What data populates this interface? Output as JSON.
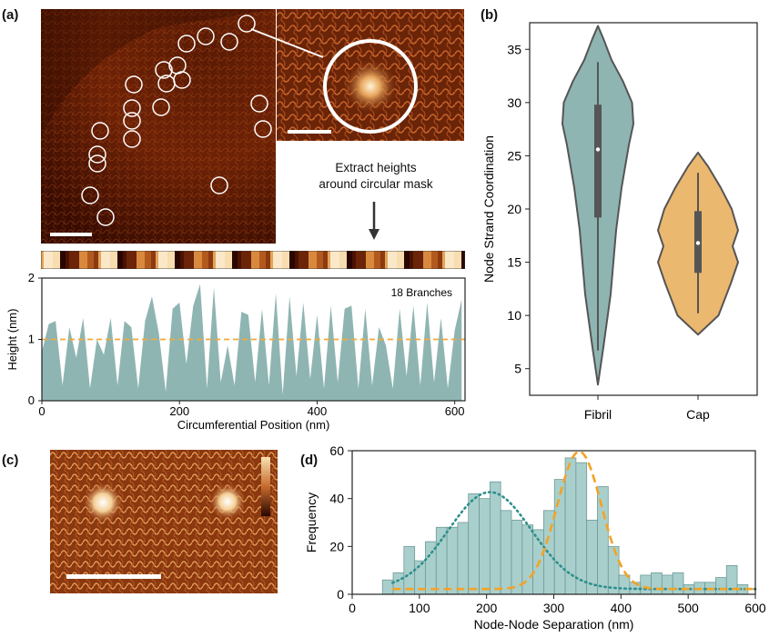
{
  "panels": {
    "a": "(a)",
    "b": "(b)",
    "c": "(c)",
    "d": "(d)"
  },
  "panel_a": {
    "annotation": "Extract heights\naround circular mask",
    "colors": {
      "afm_dark": "#2a0800",
      "afm_mid": "#8a2c08",
      "afm_light": "#f7d9a0",
      "circle": "#ffffff"
    }
  },
  "chart_data": [
    {
      "id": "a-profile",
      "type": "area",
      "xlabel": "Circumferential Position (nm)",
      "ylabel": "Height (nm)",
      "xlim": [
        0,
        615
      ],
      "ylim": [
        0,
        2
      ],
      "xticks": [
        0,
        200,
        400,
        600
      ],
      "yticks": [
        0,
        1,
        2
      ],
      "annotation": "18 Branches",
      "reference_line": 1,
      "fill_color": "#8fb5b2",
      "reference_color": "#f2a93b",
      "x": [
        0,
        10,
        20,
        30,
        40,
        50,
        60,
        70,
        80,
        90,
        100,
        110,
        120,
        130,
        140,
        150,
        160,
        170,
        180,
        190,
        200,
        210,
        220,
        230,
        240,
        250,
        260,
        270,
        280,
        290,
        300,
        310,
        320,
        330,
        340,
        350,
        360,
        370,
        380,
        390,
        400,
        410,
        420,
        430,
        440,
        450,
        460,
        470,
        480,
        490,
        500,
        510,
        520,
        530,
        540,
        550,
        560,
        570,
        580,
        590,
        600,
        610
      ],
      "y": [
        0.8,
        1.25,
        1.3,
        0.25,
        1.2,
        0.7,
        1.35,
        0.2,
        1.0,
        0.75,
        1.35,
        0.25,
        1.3,
        1.2,
        0.2,
        1.3,
        1.7,
        1.1,
        0.15,
        1.5,
        1.6,
        0.6,
        1.55,
        1.9,
        0.2,
        1.85,
        0.3,
        0.9,
        0.25,
        1.45,
        1.4,
        0.3,
        1.5,
        0.25,
        1.75,
        0.1,
        1.7,
        0.4,
        1.6,
        0.35,
        1.4,
        0.2,
        1.55,
        0.3,
        1.5,
        1.55,
        0.2,
        1.5,
        0.25,
        1.2,
        0.9,
        0.2,
        1.5,
        0.4,
        1.55,
        0.25,
        1.6,
        0.3,
        1.35,
        0.2,
        1.15,
        1.65
      ]
    },
    {
      "id": "b-violin",
      "type": "violin",
      "ylabel": "Node Strand Coordination",
      "ylim": [
        2.5,
        37.5
      ],
      "yticks": [
        5,
        10,
        15,
        20,
        25,
        30,
        35
      ],
      "categories": [
        "Fibril",
        "Cap"
      ],
      "series": [
        {
          "category": "Fibril",
          "color": "#8fb5b2",
          "density_y": [
            3.5,
            7,
            12,
            18,
            22,
            26,
            28,
            30,
            32,
            34,
            36,
            37.2
          ],
          "density_w": [
            0,
            0.12,
            0.28,
            0.4,
            0.52,
            0.68,
            0.78,
            0.75,
            0.55,
            0.3,
            0.12,
            0
          ],
          "whisker": [
            6.7,
            33.8
          ],
          "box": [
            19.2,
            29.8
          ],
          "median": 25.6
        },
        {
          "category": "Cap",
          "color": "#ebb86f",
          "density_y": [
            8.2,
            10,
            13,
            15,
            16.5,
            18,
            20,
            22,
            24,
            25.3
          ],
          "density_w": [
            0,
            0.45,
            0.72,
            0.88,
            0.76,
            0.88,
            0.74,
            0.5,
            0.22,
            0
          ],
          "whisker": [
            10.2,
            23.4
          ],
          "box": [
            14,
            19.8
          ],
          "median": 16.8
        }
      ]
    },
    {
      "id": "d-histogram",
      "type": "bar",
      "xlabel": "Node-Node Separation (nm)",
      "ylabel": "Frequency",
      "xlim": [
        0,
        600
      ],
      "ylim": [
        0,
        60
      ],
      "xticks": [
        0,
        100,
        200,
        300,
        400,
        500,
        600
      ],
      "yticks": [
        0,
        20,
        40,
        60
      ],
      "bar_color": "#a9cfcc",
      "bin_start": 45,
      "bin_width": 16,
      "values": [
        6,
        9,
        20,
        14,
        22,
        28,
        28,
        30,
        42,
        40,
        47,
        35,
        31,
        29,
        27,
        35,
        48,
        57,
        55,
        31,
        45,
        20,
        8,
        5,
        8,
        9,
        8,
        9,
        4,
        5,
        5,
        7,
        12,
        4
      ],
      "fits": [
        {
          "color": "#2e8f8c",
          "style": "dotted",
          "mean": 205,
          "sd": 62,
          "amp": 40.5
        },
        {
          "color": "#f2a325",
          "style": "dashed",
          "mean": 338,
          "sd": 33,
          "amp": 57.5
        }
      ],
      "baseline": 2.2
    }
  ]
}
